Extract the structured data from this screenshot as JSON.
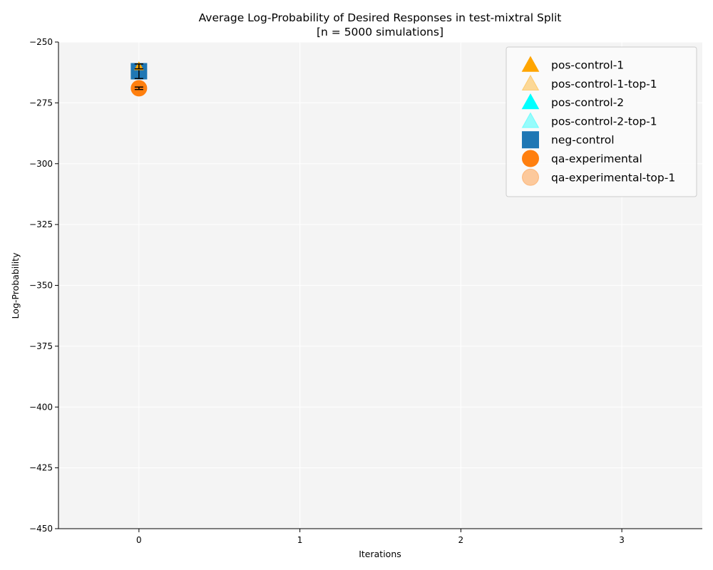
{
  "chart_data": {
    "type": "scatter",
    "title": "Average Log-Probability of Desired Responses in test-mixtral Split",
    "subtitle": "[n = 5000 simulations]",
    "xlabel": "Iterations",
    "ylabel": "Log-Probability",
    "xlim": [
      -0.5,
      3.5
    ],
    "ylim": [
      -450,
      -250
    ],
    "xticks": [
      0,
      1,
      2,
      3
    ],
    "yticks": [
      -250,
      -275,
      -300,
      -325,
      -350,
      -375,
      -400,
      -425,
      -450
    ],
    "grid": true,
    "legend_position": "upper-right",
    "series": [
      {
        "name": "pos-control-1",
        "marker": "triangle",
        "color": "#ffa500",
        "alpha": 1.0,
        "x": [
          0
        ],
        "y": [
          -260
        ],
        "err": [
          1
        ]
      },
      {
        "name": "pos-control-1-top-1",
        "marker": "triangle",
        "color": "#ffa500",
        "alpha": 0.4,
        "x": [],
        "y": [],
        "err": []
      },
      {
        "name": "pos-control-2",
        "marker": "triangle",
        "color": "#00ffff",
        "alpha": 1.0,
        "x": [],
        "y": [],
        "err": []
      },
      {
        "name": "pos-control-2-top-1",
        "marker": "triangle",
        "color": "#00ffff",
        "alpha": 0.4,
        "x": [],
        "y": [],
        "err": []
      },
      {
        "name": "neg-control",
        "marker": "square",
        "color": "#1f77b4",
        "alpha": 1.0,
        "x": [
          0
        ],
        "y": [
          -262
        ],
        "err": [
          3
        ]
      },
      {
        "name": "qa-experimental",
        "marker": "circle",
        "color": "#ff7f0e",
        "alpha": 1.0,
        "x": [
          0
        ],
        "y": [
          -269
        ],
        "err": [
          0.5
        ]
      },
      {
        "name": "qa-experimental-top-1",
        "marker": "circle",
        "color": "#ff7f0e",
        "alpha": 0.4,
        "x": [],
        "y": [],
        "err": []
      }
    ]
  }
}
